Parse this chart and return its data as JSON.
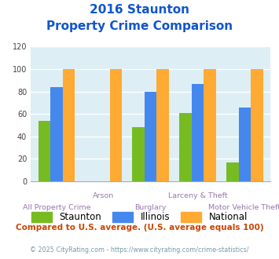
{
  "title_line1": "2016 Staunton",
  "title_line2": "Property Crime Comparison",
  "categories": [
    "All Property Crime",
    "Arson",
    "Burglary",
    "Larceny & Theft",
    "Motor Vehicle Theft"
  ],
  "staunton": [
    54,
    0,
    48,
    61,
    17
  ],
  "illinois": [
    84,
    0,
    80,
    87,
    66
  ],
  "national": [
    100,
    100,
    100,
    100,
    100
  ],
  "bar_color_staunton": "#77bb22",
  "bar_color_illinois": "#4488ee",
  "bar_color_national": "#ffaa33",
  "ylim": [
    0,
    120
  ],
  "yticks": [
    0,
    20,
    40,
    60,
    80,
    100,
    120
  ],
  "legend_labels": [
    "Staunton",
    "Illinois",
    "National"
  ],
  "footnote1": "Compared to U.S. average. (U.S. average equals 100)",
  "footnote2": "© 2025 CityRating.com - https://www.cityrating.com/crime-statistics/",
  "title_color": "#1155cc",
  "xlabel_color": "#9977aa",
  "footnote1_color": "#cc4400",
  "footnote2_color": "#7799aa",
  "bg_color": "#ddeef5",
  "fig_bg": "#ffffff",
  "grid_color": "#ffffff"
}
